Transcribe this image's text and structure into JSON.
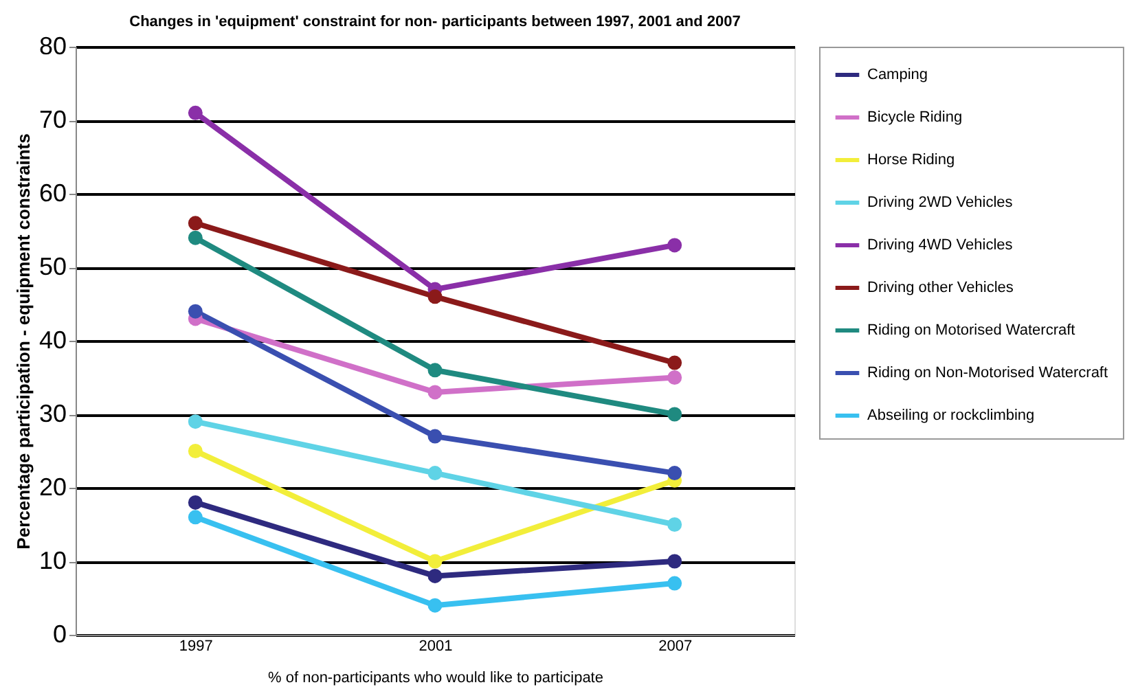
{
  "chart_data": {
    "type": "line",
    "title": "Changes in 'equipment' constraint for non- participants between 1997, 2001 and 2007",
    "xlabel": "% of non-participants who would like to participate",
    "ylabel": "Percentage participation - equipment constraints",
    "categories": [
      "1997",
      "2001",
      "2007"
    ],
    "series": [
      {
        "name": "Camping",
        "color": "#2e2a7f",
        "values": [
          18,
          8,
          10
        ]
      },
      {
        "name": "Bicycle Riding",
        "color": "#d070c8",
        "values": [
          43,
          33,
          35
        ]
      },
      {
        "name": "Horse Riding",
        "color": "#f2ee3a",
        "values": [
          25,
          10,
          21
        ]
      },
      {
        "name": "Driving 2WD Vehicles",
        "color": "#5fd3e6",
        "values": [
          29,
          22,
          15
        ]
      },
      {
        "name": "Driving 4WD Vehicles",
        "color": "#8a2fa8",
        "values": [
          71,
          47,
          53
        ]
      },
      {
        "name": "Driving other Vehicles",
        "color": "#8b1a1a",
        "values": [
          56,
          46,
          37
        ]
      },
      {
        "name": "Riding on Motorised Watercraft",
        "color": "#1f8a80",
        "values": [
          54,
          36,
          30
        ]
      },
      {
        "name": "Riding on Non-Motorised Watercraft",
        "color": "#3a4fb0",
        "values": [
          44,
          27,
          22
        ]
      },
      {
        "name": "Abseiling or rockclimbing",
        "color": "#38c0f0",
        "values": [
          16,
          4,
          7
        ]
      }
    ],
    "ylim": [
      0,
      80
    ],
    "yticks": [
      0,
      10,
      20,
      30,
      40,
      50,
      60,
      70,
      80
    ],
    "grid": "y",
    "legend": "right",
    "marker": "circle",
    "line_style": "solid"
  }
}
